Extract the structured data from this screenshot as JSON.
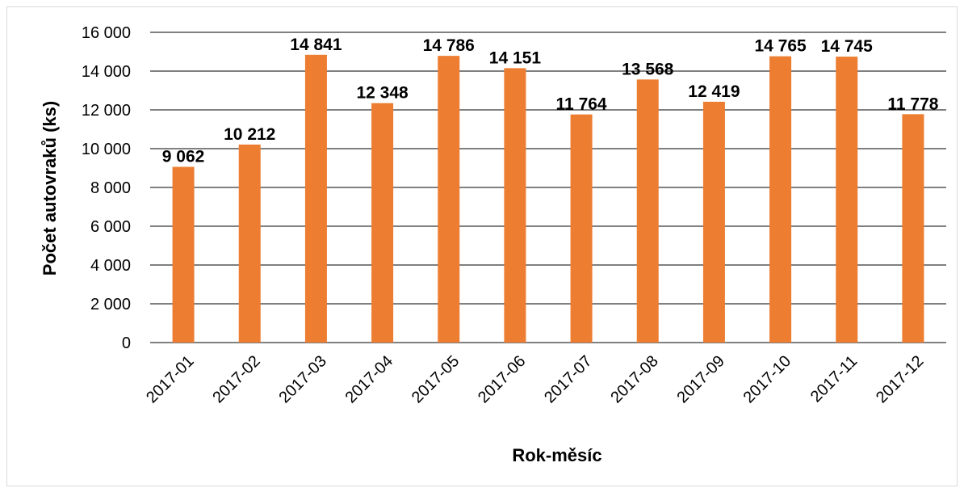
{
  "chart_data": {
    "type": "bar",
    "categories": [
      "2017-01",
      "2017-02",
      "2017-03",
      "2017-04",
      "2017-05",
      "2017-06",
      "2017-07",
      "2017-08",
      "2017-09",
      "2017-10",
      "2017-11",
      "2017-12"
    ],
    "values": [
      9062,
      10212,
      14841,
      12348,
      14786,
      14151,
      11764,
      13568,
      12419,
      14765,
      14745,
      11778
    ],
    "value_labels": [
      "9 062",
      "10 212",
      "14 841",
      "12 348",
      "14 786",
      "14 151",
      "11 764",
      "13 568",
      "12 419",
      "14 765",
      "14 745",
      "11 778"
    ],
    "y_ticks": [
      0,
      2000,
      4000,
      6000,
      8000,
      10000,
      12000,
      14000,
      16000
    ],
    "y_tick_labels": [
      "0",
      "2 000",
      "4 000",
      "6 000",
      "8 000",
      "10 000",
      "12 000",
      "14 000",
      "16 000"
    ],
    "ylim": [
      0,
      16000
    ],
    "xlabel": "Rok-měsíc",
    "ylabel": "Počet autovraků (ks)",
    "grid": true,
    "legend": "none",
    "bar_color": "#ed7d31",
    "grid_color": "#000000"
  }
}
